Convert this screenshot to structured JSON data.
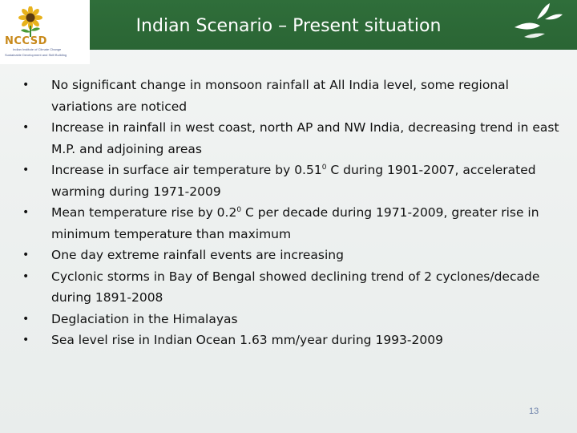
{
  "header": {
    "title": "Indian Scenario – Present situation",
    "logo_text": "NCCSD",
    "logo_line1": "Indian Institute of Climate Change",
    "logo_line2": "Sustainable Development and Skill Building",
    "accent_color": "#2f6e3a",
    "logo_color": "#c8891a"
  },
  "bullets": [
    {
      "parts": [
        "No significant change in monsoon rainfall at All India level, some regional variations are noticed"
      ]
    },
    {
      "parts": [
        "Increase in rainfall in west coast, north AP and NW India, decreasing trend in east M.P. and adjoining areas"
      ]
    },
    {
      "parts": [
        "Increase in surface air temperature by 0.51",
        "0",
        " C during 1901-2007, accelerated warming during 1971-2009"
      ]
    },
    {
      "parts": [
        "Mean temperature rise by 0.2",
        "0",
        " C per decade during 1971-2009, greater rise in minimum temperature than maximum"
      ]
    },
    {
      "parts": [
        "One day extreme rainfall events are increasing"
      ]
    },
    {
      "parts": [
        "Cyclonic storms in Bay of Bengal showed declining trend of 2 cyclones/decade during 1891-2008"
      ]
    },
    {
      "parts": [
        "Deglaciation in the Himalayas"
      ]
    },
    {
      "parts": [
        "Sea level rise in Indian Ocean 1.63 mm/year during 1993-2009"
      ]
    }
  ],
  "bullet_symbol": "•",
  "page_number": "13"
}
